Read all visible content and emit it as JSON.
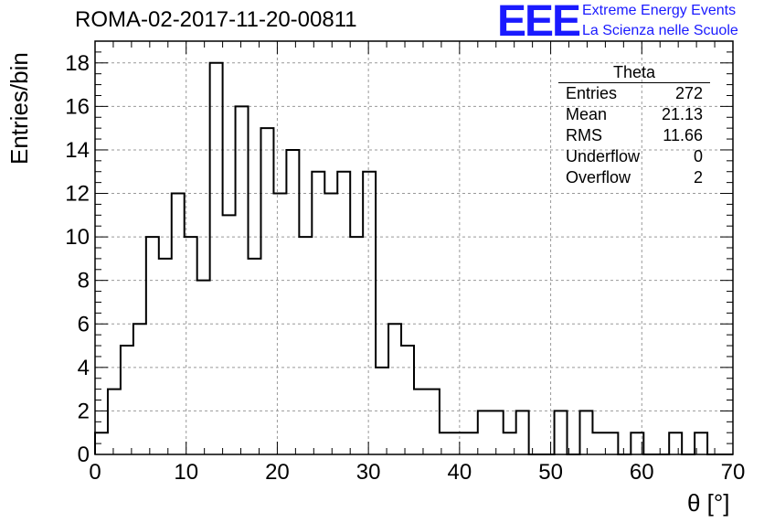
{
  "header": {
    "title": "ROMA-02-2017-11-20-00811",
    "logo": "EEE",
    "logo_line1": "Extreme Energy Events",
    "logo_line2": "La Scienza nelle Scuole"
  },
  "stats": {
    "name": "Theta",
    "rows": [
      {
        "label": "Entries",
        "value": "272"
      },
      {
        "label": "Mean",
        "value": "21.13"
      },
      {
        "label": "RMS",
        "value": "11.66"
      },
      {
        "label": "Underflow",
        "value": "0"
      },
      {
        "label": "Overflow",
        "value": "2"
      }
    ]
  },
  "chart_data": {
    "type": "histogram",
    "xlabel": "θ [°]",
    "ylabel": "Entries/bin",
    "xlim": [
      0,
      70
    ],
    "ylim": [
      0,
      19
    ],
    "bin_width": 1.4,
    "x_ticks": [
      0,
      10,
      20,
      30,
      40,
      50,
      60,
      70
    ],
    "y_ticks": [
      0,
      2,
      4,
      6,
      8,
      10,
      12,
      14,
      16,
      18
    ],
    "grid": true,
    "values": [
      1,
      3,
      5,
      6,
      10,
      9,
      12,
      10,
      8,
      18,
      11,
      16,
      9,
      15,
      12,
      14,
      10,
      13,
      12,
      13,
      10,
      13,
      4,
      6,
      5,
      3,
      3,
      1,
      1,
      1,
      2,
      2,
      1,
      2,
      0,
      0,
      2,
      0,
      2,
      1,
      1,
      0,
      1,
      0,
      0,
      1,
      0,
      1,
      0,
      0
    ]
  }
}
